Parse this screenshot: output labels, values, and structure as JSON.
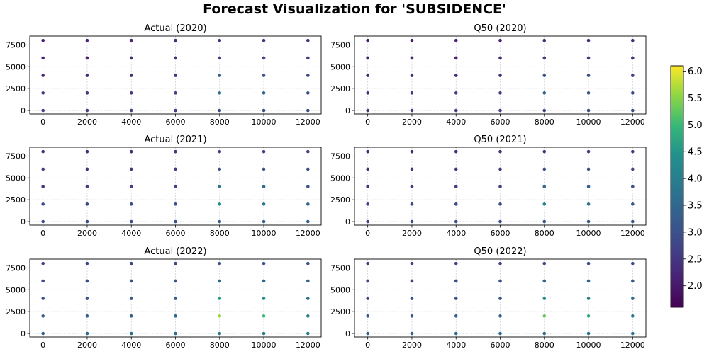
{
  "figure": {
    "title": "Forecast Visualization for 'SUBSIDENCE'"
  },
  "colorbar": {
    "colormap": "viridis",
    "range": [
      1.6,
      6.1
    ],
    "ticks": [
      "2.0",
      "2.5",
      "3.0",
      "3.5",
      "4.0",
      "4.5",
      "5.0",
      "5.5",
      "6.0"
    ]
  },
  "chart_data": [
    {
      "type": "scatter",
      "title": "Actual (2020)",
      "x": [
        0,
        2000,
        4000,
        6000,
        8000,
        10000,
        12000
      ],
      "y": [
        0,
        2000,
        4000,
        6000,
        8000
      ],
      "xticks": [
        "0",
        "2000",
        "4000",
        "6000",
        "8000",
        "10000",
        "12000"
      ],
      "yticks": [
        "0",
        "2500",
        "5000",
        "7500"
      ],
      "xlim": [
        -600,
        12600
      ],
      "ylim": [
        -400,
        8500
      ],
      "grid": true,
      "values": [
        [
          2.6,
          2.7,
          2.7,
          2.7,
          2.8,
          2.9,
          2.9
        ],
        [
          2.5,
          2.5,
          2.6,
          2.7,
          3.7,
          3.3,
          2.9
        ],
        [
          2.2,
          2.3,
          2.4,
          2.5,
          3.3,
          3.1,
          2.8
        ],
        [
          2.2,
          2.2,
          2.3,
          2.4,
          2.7,
          2.7,
          2.5
        ],
        [
          2.1,
          2.2,
          2.2,
          2.3,
          2.4,
          2.4,
          2.4
        ]
      ]
    },
    {
      "type": "scatter",
      "title": "Q50 (2020)",
      "x": [
        0,
        2000,
        4000,
        6000,
        8000,
        10000,
        12000
      ],
      "y": [
        0,
        2000,
        4000,
        6000,
        8000
      ],
      "xticks": [
        "0",
        "2000",
        "4000",
        "6000",
        "8000",
        "10000",
        "12000"
      ],
      "yticks": [
        "0",
        "2500",
        "5000",
        "7500"
      ],
      "xlim": [
        -600,
        12600
      ],
      "ylim": [
        -400,
        8500
      ],
      "grid": true,
      "values": [
        [
          2.5,
          2.6,
          2.7,
          2.7,
          2.8,
          2.8,
          2.8
        ],
        [
          2.4,
          2.5,
          2.6,
          2.6,
          3.4,
          3.1,
          2.8
        ],
        [
          2.2,
          2.3,
          2.3,
          2.4,
          3.1,
          2.9,
          2.6
        ],
        [
          2.1,
          2.2,
          2.2,
          2.3,
          2.6,
          2.6,
          2.4
        ],
        [
          2.0,
          2.1,
          2.2,
          2.2,
          2.3,
          2.3,
          2.3
        ]
      ]
    },
    {
      "type": "scatter",
      "title": "Actual (2021)",
      "x": [
        0,
        2000,
        4000,
        6000,
        8000,
        10000,
        12000
      ],
      "y": [
        0,
        2000,
        4000,
        6000,
        8000
      ],
      "xticks": [
        "0",
        "2000",
        "4000",
        "6000",
        "8000",
        "10000",
        "12000"
      ],
      "yticks": [
        "0",
        "2500",
        "5000",
        "7500"
      ],
      "xlim": [
        -600,
        12600
      ],
      "ylim": [
        -400,
        8500
      ],
      "grid": true,
      "values": [
        [
          2.9,
          3.0,
          3.0,
          3.1,
          3.2,
          3.3,
          3.3
        ],
        [
          2.8,
          2.8,
          2.9,
          3.0,
          4.4,
          3.9,
          3.4
        ],
        [
          2.5,
          2.6,
          2.7,
          2.8,
          3.8,
          3.6,
          3.1
        ],
        [
          2.4,
          2.4,
          2.5,
          2.6,
          3.0,
          3.0,
          2.8
        ],
        [
          2.3,
          2.4,
          2.4,
          2.5,
          2.6,
          2.6,
          2.6
        ]
      ]
    },
    {
      "type": "scatter",
      "title": "Q50 (2021)",
      "x": [
        0,
        2000,
        4000,
        6000,
        8000,
        10000,
        12000
      ],
      "y": [
        0,
        2000,
        4000,
        6000,
        8000
      ],
      "xticks": [
        "0",
        "2000",
        "4000",
        "6000",
        "8000",
        "10000",
        "12000"
      ],
      "yticks": [
        "0",
        "2500",
        "5000",
        "7500"
      ],
      "xlim": [
        -600,
        12600
      ],
      "ylim": [
        -400,
        8500
      ],
      "grid": true,
      "values": [
        [
          2.8,
          2.9,
          3.0,
          3.0,
          3.1,
          3.2,
          3.2
        ],
        [
          2.7,
          2.8,
          2.8,
          2.9,
          4.1,
          3.7,
          3.2
        ],
        [
          2.4,
          2.5,
          2.6,
          2.7,
          3.6,
          3.4,
          3.0
        ],
        [
          2.3,
          2.4,
          2.4,
          2.5,
          2.9,
          2.9,
          2.7
        ],
        [
          2.2,
          2.3,
          2.4,
          2.4,
          2.5,
          2.5,
          2.5
        ]
      ]
    },
    {
      "type": "scatter",
      "title": "Actual (2022)",
      "x": [
        0,
        2000,
        4000,
        6000,
        8000,
        10000,
        12000
      ],
      "y": [
        0,
        2000,
        4000,
        6000,
        8000
      ],
      "xticks": [
        "0",
        "2000",
        "4000",
        "6000",
        "8000",
        "10000",
        "12000"
      ],
      "yticks": [
        "0",
        "2500",
        "5000",
        "7500"
      ],
      "xlim": [
        -600,
        12600
      ],
      "ylim": [
        -400,
        8500
      ],
      "grid": true,
      "values": [
        [
          3.4,
          3.5,
          3.6,
          3.7,
          3.8,
          3.9,
          3.9
        ],
        [
          3.2,
          3.3,
          3.4,
          3.5,
          5.6,
          5.0,
          4.0
        ],
        [
          3.0,
          3.1,
          3.2,
          3.3,
          4.6,
          4.3,
          3.7
        ],
        [
          2.8,
          2.9,
          3.0,
          3.1,
          3.5,
          3.5,
          3.3
        ],
        [
          2.7,
          2.8,
          2.8,
          2.9,
          3.0,
          3.0,
          3.0
        ]
      ]
    },
    {
      "type": "scatter",
      "title": "Q50 (2022)",
      "x": [
        0,
        2000,
        4000,
        6000,
        8000,
        10000,
        12000
      ],
      "y": [
        0,
        2000,
        4000,
        6000,
        8000
      ],
      "xticks": [
        "0",
        "2000",
        "4000",
        "6000",
        "8000",
        "10000",
        "12000"
      ],
      "yticks": [
        "0",
        "2500",
        "5000",
        "7500"
      ],
      "xlim": [
        -600,
        12600
      ],
      "ylim": [
        -400,
        8500
      ],
      "grid": true,
      "values": [
        [
          3.3,
          3.4,
          3.5,
          3.6,
          3.7,
          3.7,
          3.8
        ],
        [
          3.1,
          3.2,
          3.3,
          3.4,
          5.3,
          4.8,
          3.9
        ],
        [
          2.9,
          3.0,
          3.1,
          3.2,
          4.4,
          4.1,
          3.6
        ],
        [
          2.7,
          2.8,
          2.9,
          3.0,
          3.4,
          3.4,
          3.2
        ],
        [
          2.6,
          2.7,
          2.7,
          2.8,
          2.9,
          2.9,
          2.9
        ]
      ]
    }
  ]
}
